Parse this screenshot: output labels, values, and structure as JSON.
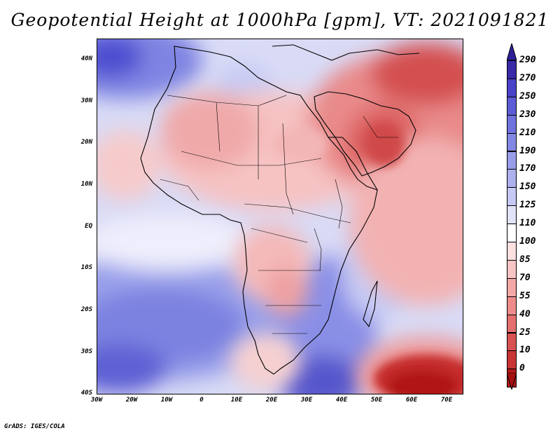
{
  "title": "Geopotential Height at 1000hPa [gpm], VT: 2021091821",
  "credit": "GrADS: IGES/COLA",
  "lat_labels": [
    "40N",
    "30N",
    "20N",
    "10N",
    "EQ",
    "10S",
    "20S",
    "30S",
    "40S"
  ],
  "lon_labels": [
    "30W",
    "20W",
    "10W",
    "0",
    "10E",
    "20E",
    "30E",
    "40E",
    "50E",
    "60E",
    "70E"
  ],
  "colorbar": {
    "labels": [
      "290",
      "270",
      "250",
      "230",
      "210",
      "190",
      "170",
      "150",
      "125",
      "110",
      "100",
      "85",
      "70",
      "55",
      "40",
      "25",
      "10",
      "0"
    ],
    "colors": [
      "#3a2aa8",
      "#4a42c8",
      "#5c5cd6",
      "#6f73de",
      "#8388e4",
      "#989de9",
      "#adb1ee",
      "#c6c9f3",
      "#e2e3f9",
      "#ffffff",
      "#fde0e0",
      "#f9c4c4",
      "#f4a8a8",
      "#ee8c8c",
      "#e46f6f",
      "#d85252",
      "#c93434",
      "#b41818"
    ]
  },
  "map": {
    "lat_range": [
      -40,
      45
    ],
    "lon_range": [
      -30,
      75
    ],
    "variable": "Geopotential Height",
    "level": "1000hPa",
    "units": "gpm",
    "valid_time": "2021091821"
  }
}
